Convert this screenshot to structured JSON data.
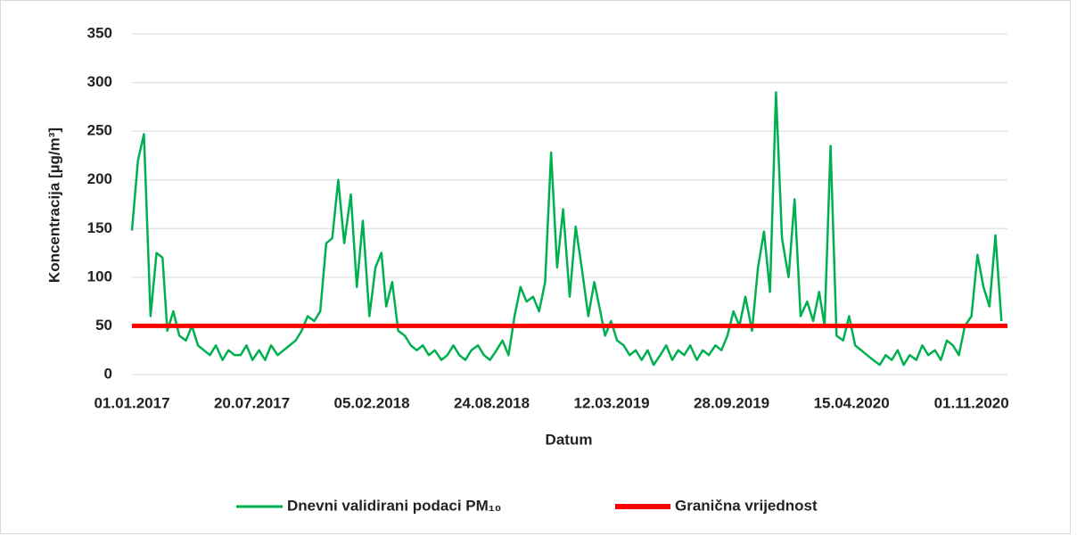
{
  "chart_data": {
    "type": "line",
    "y_label": "Koncentracija [µg/m³]",
    "x_label": "Datum",
    "xlim": [
      "01.01.2017",
      "31.12.2020"
    ],
    "xticks": [
      "01.01.2017",
      "20.07.2017",
      "05.02.2018",
      "24.08.2018",
      "12.03.2019",
      "28.09.2019",
      "15.04.2020",
      "01.11.2020"
    ],
    "ylim": [
      0,
      350
    ],
    "yticks": [
      0,
      50,
      100,
      150,
      200,
      250,
      300,
      350
    ],
    "grid": true,
    "legend": "bottom",
    "series": [
      {
        "name": "Dnevni validirani podaci PM₁₀",
        "color": "#00b050",
        "x": [
          "01.01.2017",
          "11.01.2017",
          "21.01.2017",
          "01.02.2017",
          "11.02.2017",
          "21.02.2017",
          "01.03.2017",
          "11.03.2017",
          "21.03.2017",
          "01.04.2017",
          "11.04.2017",
          "21.04.2017",
          "01.05.2017",
          "11.05.2017",
          "21.05.2017",
          "01.06.2017",
          "11.06.2017",
          "21.06.2017",
          "01.07.2017",
          "11.07.2017",
          "21.07.2017",
          "01.08.2017",
          "11.08.2017",
          "21.08.2017",
          "01.09.2017",
          "11.09.2017",
          "21.09.2017",
          "01.10.2017",
          "11.10.2017",
          "21.10.2017",
          "01.11.2017",
          "11.11.2017",
          "21.11.2017",
          "01.12.2017",
          "11.12.2017",
          "21.12.2017",
          "01.01.2018",
          "11.01.2018",
          "21.01.2018",
          "01.02.2018",
          "11.02.2018",
          "21.02.2018",
          "01.03.2018",
          "11.03.2018",
          "21.03.2018",
          "01.04.2018",
          "11.04.2018",
          "21.04.2018",
          "01.05.2018",
          "11.05.2018",
          "21.05.2018",
          "01.06.2018",
          "11.06.2018",
          "21.06.2018",
          "01.07.2018",
          "11.07.2018",
          "21.07.2018",
          "01.08.2018",
          "11.08.2018",
          "21.08.2018",
          "01.09.2018",
          "11.09.2018",
          "21.09.2018",
          "01.10.2018",
          "11.10.2018",
          "21.10.2018",
          "01.11.2018",
          "11.11.2018",
          "21.11.2018",
          "01.12.2018",
          "11.12.2018",
          "21.12.2018",
          "01.01.2019",
          "11.01.2019",
          "21.01.2019",
          "01.02.2019",
          "11.02.2019",
          "21.02.2019",
          "01.03.2019",
          "11.03.2019",
          "21.03.2019",
          "01.04.2019",
          "11.04.2019",
          "21.04.2019",
          "01.05.2019",
          "11.05.2019",
          "21.05.2019",
          "01.06.2019",
          "11.06.2019",
          "21.06.2019",
          "01.07.2019",
          "11.07.2019",
          "21.07.2019",
          "01.08.2019",
          "11.08.2019",
          "21.08.2019",
          "01.09.2019",
          "11.09.2019",
          "21.09.2019",
          "01.10.2019",
          "11.10.2019",
          "21.10.2019",
          "01.11.2019",
          "11.11.2019",
          "21.11.2019",
          "01.12.2019",
          "11.12.2019",
          "21.12.2019",
          "01.01.2020",
          "11.01.2020",
          "21.01.2020",
          "01.02.2020",
          "11.02.2020",
          "21.02.2020",
          "01.03.2020",
          "11.03.2020",
          "21.03.2020",
          "01.04.2020",
          "11.04.2020",
          "21.04.2020",
          "01.05.2020",
          "11.05.2020",
          "21.05.2020",
          "01.06.2020",
          "11.06.2020",
          "21.06.2020",
          "01.07.2020",
          "11.07.2020",
          "21.07.2020",
          "01.08.2020",
          "11.08.2020",
          "21.08.2020",
          "01.09.2020",
          "11.09.2020",
          "21.09.2020",
          "01.10.2020",
          "11.10.2020",
          "21.10.2020",
          "01.11.2020",
          "11.11.2020",
          "21.11.2020",
          "01.12.2020",
          "11.12.2020",
          "21.12.2020"
        ],
        "values": [
          148,
          220,
          247,
          60,
          125,
          120,
          45,
          65,
          40,
          35,
          50,
          30,
          25,
          20,
          30,
          15,
          25,
          20,
          20,
          30,
          15,
          25,
          15,
          30,
          20,
          25,
          30,
          35,
          45,
          60,
          55,
          65,
          135,
          140,
          200,
          135,
          185,
          90,
          158,
          60,
          110,
          125,
          70,
          95,
          45,
          40,
          30,
          25,
          30,
          20,
          25,
          15,
          20,
          30,
          20,
          15,
          25,
          30,
          20,
          15,
          25,
          35,
          20,
          60,
          90,
          75,
          80,
          65,
          95,
          228,
          110,
          170,
          80,
          152,
          110,
          60,
          95,
          65,
          40,
          55,
          35,
          30,
          20,
          25,
          15,
          25,
          10,
          20,
          30,
          15,
          25,
          20,
          30,
          15,
          25,
          20,
          30,
          25,
          40,
          65,
          50,
          80,
          45,
          110,
          147,
          85,
          290,
          140,
          100,
          180,
          60,
          75,
          55,
          85,
          50,
          235,
          40,
          35,
          60,
          30,
          25,
          20,
          15,
          10,
          20,
          15,
          25,
          10,
          20,
          15,
          30,
          20,
          25,
          15,
          35,
          30,
          20,
          50,
          60,
          123,
          90,
          70,
          143,
          55
        ]
      },
      {
        "name": "Granična vrijednost",
        "color": "#ff0000",
        "x": [
          "01.01.2017",
          "31.12.2020"
        ],
        "values": [
          50,
          50
        ]
      }
    ]
  }
}
